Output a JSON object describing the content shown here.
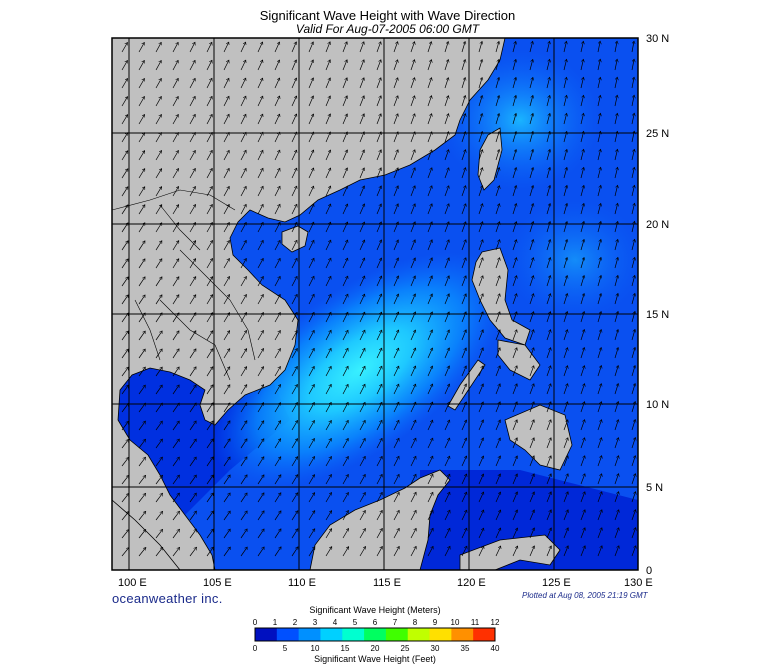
{
  "header": {
    "title": "Significant Wave Height with Wave Direction",
    "subtitle": "Valid For Aug-07-2005 06:00 GMT"
  },
  "map": {
    "lon_range": [
      99,
      130
    ],
    "lat_range": [
      0,
      30
    ],
    "lon_labels": [
      "100 E",
      "105 E",
      "110 E",
      "115 E",
      "120 E",
      "125 E",
      "130 E"
    ],
    "lat_labels": [
      "30 N",
      "25 N",
      "20 N",
      "15 N",
      "10 N",
      "5 N",
      "0"
    ],
    "colors": {
      "land": "#c0c0c0",
      "sea_low": "#0022dd",
      "sea_mid": "#0a6cff",
      "sea_high": "#1ec8ff",
      "peak": "#38f0ff",
      "grid": "#000000"
    }
  },
  "footer": {
    "brand": "oceanweather inc.",
    "plotted": "Plotted at Aug 08, 2005 21:19 GMT"
  },
  "colorbar": {
    "title_meters": "Significant Wave Height (Meters)",
    "title_feet": "Significant Wave Height (Feet)",
    "meter_ticks": [
      "0",
      "1",
      "2",
      "3",
      "4",
      "5",
      "6",
      "7",
      "8",
      "9",
      "10",
      "11",
      "12"
    ],
    "feet_ticks": [
      "0",
      "5",
      "10",
      "15",
      "20",
      "25",
      "30",
      "35",
      "40"
    ],
    "colors": [
      "#0010c0",
      "#0050ff",
      "#0090ff",
      "#00d0ff",
      "#00ffd0",
      "#00ff60",
      "#40ff00",
      "#c0ff00",
      "#ffe000",
      "#ff9000",
      "#ff3000"
    ]
  }
}
